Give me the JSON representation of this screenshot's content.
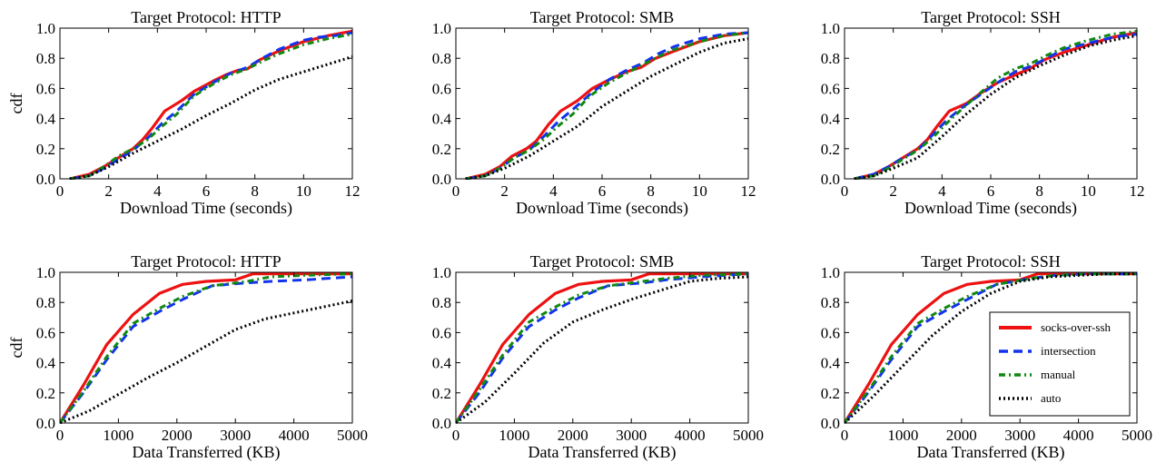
{
  "chart_data": [
    {
      "type": "line",
      "title": "Target Protocol: HTTP",
      "xlabel": "Download Time (seconds)",
      "ylabel": "cdf",
      "xlim": [
        0,
        12
      ],
      "ylim": [
        0,
        1
      ],
      "xticks": [
        0,
        2,
        4,
        6,
        8,
        10,
        12
      ],
      "yticks": [
        "0.0",
        "0.2",
        "0.4",
        "0.6",
        "0.8",
        "1.0"
      ],
      "grid": false,
      "series": [
        {
          "name": "socks-over-ssh",
          "color": "#ee1111",
          "dash": "solid",
          "x": [
            0.4,
            1.2,
            1.8,
            2.4,
            3.0,
            3.4,
            3.8,
            4.3,
            5.0,
            5.5,
            6.3,
            6.8,
            7.3,
            7.7,
            8.2,
            9.0,
            10.0,
            11.0,
            12.0
          ],
          "y": [
            0,
            0.03,
            0.08,
            0.14,
            0.2,
            0.26,
            0.34,
            0.45,
            0.52,
            0.58,
            0.65,
            0.69,
            0.72,
            0.73,
            0.79,
            0.85,
            0.91,
            0.95,
            0.98
          ]
        },
        {
          "name": "intersection",
          "color": "#1133ee",
          "dash": "dashed",
          "x": [
            0.4,
            1.2,
            1.8,
            2.4,
            3.0,
            3.6,
            4.2,
            4.8,
            5.5,
            6.3,
            7.0,
            7.7,
            8.3,
            9.0,
            10.0,
            10.6,
            11.3,
            12.0
          ],
          "y": [
            0,
            0.02,
            0.07,
            0.13,
            0.19,
            0.27,
            0.37,
            0.45,
            0.56,
            0.64,
            0.7,
            0.74,
            0.8,
            0.86,
            0.92,
            0.94,
            0.95,
            0.97
          ]
        },
        {
          "name": "manual",
          "color": "#118811",
          "dash": "dashdot",
          "x": [
            0.4,
            1.2,
            1.8,
            2.4,
            3.0,
            3.6,
            4.2,
            4.8,
            5.5,
            6.3,
            7.0,
            7.7,
            8.3,
            9.0,
            10.0,
            11.0,
            12.0
          ],
          "y": [
            0,
            0.02,
            0.08,
            0.15,
            0.2,
            0.26,
            0.35,
            0.43,
            0.55,
            0.63,
            0.69,
            0.73,
            0.78,
            0.83,
            0.89,
            0.93,
            0.96
          ]
        },
        {
          "name": "auto",
          "color": "#000000",
          "dash": "dotted",
          "x": [
            0.4,
            1.2,
            2.0,
            3.0,
            4.0,
            5.0,
            6.0,
            7.0,
            8.0,
            9.0,
            10.0,
            11.0,
            12.0
          ],
          "y": [
            0,
            0.02,
            0.08,
            0.17,
            0.25,
            0.33,
            0.42,
            0.5,
            0.59,
            0.66,
            0.71,
            0.76,
            0.81
          ]
        }
      ]
    },
    {
      "type": "line",
      "title": "Target Protocol: SMB",
      "xlabel": "Download Time (seconds)",
      "ylabel": "",
      "xlim": [
        0,
        12
      ],
      "ylim": [
        0,
        1
      ],
      "xticks": [
        0,
        2,
        4,
        6,
        8,
        10,
        12
      ],
      "yticks": [
        "0.0",
        "0.2",
        "0.4",
        "0.6",
        "0.8",
        "1.0"
      ],
      "grid": false,
      "series": [
        {
          "name": "socks-over-ssh",
          "color": "#ee1111",
          "dash": "solid",
          "x": [
            0.4,
            1.2,
            1.8,
            2.3,
            2.9,
            3.3,
            3.8,
            4.3,
            5.0,
            5.6,
            6.2,
            7.0,
            7.6,
            8.2,
            9.0,
            10.0,
            11.0,
            12.0
          ],
          "y": [
            0,
            0.03,
            0.08,
            0.15,
            0.2,
            0.25,
            0.36,
            0.45,
            0.52,
            0.6,
            0.65,
            0.71,
            0.74,
            0.8,
            0.85,
            0.91,
            0.95,
            0.97
          ]
        },
        {
          "name": "intersection",
          "color": "#1133ee",
          "dash": "dashed",
          "x": [
            0.4,
            1.2,
            1.8,
            2.4,
            3.0,
            3.6,
            4.2,
            4.8,
            5.5,
            6.3,
            7.0,
            7.7,
            8.3,
            9.0,
            10.0,
            11.0,
            12.0
          ],
          "y": [
            0,
            0.02,
            0.07,
            0.14,
            0.19,
            0.28,
            0.38,
            0.46,
            0.56,
            0.66,
            0.72,
            0.77,
            0.83,
            0.88,
            0.93,
            0.96,
            0.97
          ]
        },
        {
          "name": "manual",
          "color": "#118811",
          "dash": "dashdot",
          "x": [
            0.4,
            1.2,
            1.8,
            2.4,
            3.0,
            3.6,
            4.2,
            4.8,
            5.5,
            6.3,
            7.0,
            7.7,
            8.3,
            9.0,
            10.0,
            11.0,
            12.0
          ],
          "y": [
            0,
            0.02,
            0.07,
            0.14,
            0.19,
            0.26,
            0.35,
            0.43,
            0.55,
            0.64,
            0.7,
            0.76,
            0.81,
            0.86,
            0.91,
            0.95,
            0.97
          ]
        },
        {
          "name": "auto",
          "color": "#000000",
          "dash": "dotted",
          "x": [
            0.4,
            1.2,
            2.0,
            3.0,
            4.0,
            5.0,
            6.0,
            7.0,
            8.0,
            9.0,
            10.0,
            11.0,
            12.0
          ],
          "y": [
            0,
            0.02,
            0.07,
            0.15,
            0.25,
            0.35,
            0.48,
            0.58,
            0.68,
            0.76,
            0.84,
            0.9,
            0.93
          ]
        }
      ]
    },
    {
      "type": "line",
      "title": "Target Protocol: SSH",
      "xlabel": "Download Time (seconds)",
      "ylabel": "",
      "xlim": [
        0,
        12
      ],
      "ylim": [
        0,
        1
      ],
      "xticks": [
        0,
        2,
        4,
        6,
        8,
        10,
        12
      ],
      "yticks": [
        "0.0",
        "0.2",
        "0.4",
        "0.6",
        "0.8",
        "1.0"
      ],
      "grid": false,
      "series": [
        {
          "name": "socks-over-ssh",
          "color": "#ee1111",
          "dash": "solid",
          "x": [
            0.4,
            1.2,
            1.8,
            2.4,
            3.0,
            3.4,
            3.8,
            4.3,
            5.0,
            5.6,
            6.3,
            7.0,
            7.6,
            8.2,
            9.0,
            10.0,
            11.0,
            12.0
          ],
          "y": [
            0,
            0.03,
            0.08,
            0.14,
            0.2,
            0.26,
            0.35,
            0.45,
            0.5,
            0.57,
            0.64,
            0.69,
            0.73,
            0.79,
            0.84,
            0.89,
            0.94,
            0.97
          ]
        },
        {
          "name": "intersection",
          "color": "#1133ee",
          "dash": "dashed",
          "x": [
            0.4,
            1.2,
            1.8,
            2.4,
            3.0,
            3.6,
            4.2,
            4.8,
            5.5,
            6.3,
            7.0,
            7.7,
            8.3,
            9.0,
            10.0,
            11.0,
            12.0
          ],
          "y": [
            0,
            0.03,
            0.08,
            0.14,
            0.19,
            0.29,
            0.39,
            0.47,
            0.55,
            0.64,
            0.71,
            0.75,
            0.8,
            0.86,
            0.9,
            0.94,
            0.96
          ]
        },
        {
          "name": "manual",
          "color": "#118811",
          "dash": "dashdot",
          "x": [
            0.4,
            1.2,
            1.8,
            2.4,
            3.0,
            3.6,
            4.2,
            4.8,
            5.5,
            6.3,
            7.0,
            7.7,
            8.3,
            9.0,
            10.0,
            11.0,
            12.0
          ],
          "y": [
            0,
            0.02,
            0.07,
            0.13,
            0.19,
            0.27,
            0.37,
            0.46,
            0.56,
            0.67,
            0.73,
            0.77,
            0.82,
            0.87,
            0.92,
            0.96,
            0.98
          ]
        },
        {
          "name": "auto",
          "color": "#000000",
          "dash": "dotted",
          "x": [
            0.4,
            1.2,
            2.0,
            3.0,
            4.0,
            5.0,
            6.0,
            7.0,
            8.0,
            9.0,
            10.0,
            11.0,
            12.0
          ],
          "y": [
            0,
            0.02,
            0.07,
            0.14,
            0.28,
            0.43,
            0.56,
            0.67,
            0.75,
            0.82,
            0.88,
            0.92,
            0.95
          ]
        }
      ]
    },
    {
      "type": "line",
      "title": "Target Protocol: HTTP",
      "xlabel": "Data Transferred (KB)",
      "ylabel": "cdf",
      "xlim": [
        0,
        5000
      ],
      "ylim": [
        0,
        1
      ],
      "xticks": [
        0,
        1000,
        2000,
        3000,
        4000,
        5000
      ],
      "yticks": [
        "0.0",
        "0.2",
        "0.4",
        "0.6",
        "0.8",
        "1.0"
      ],
      "grid": false,
      "series": [
        {
          "name": "socks-over-ssh",
          "color": "#ee1111",
          "dash": "solid",
          "x": [
            0,
            400,
            800,
            1250,
            1700,
            2100,
            2500,
            3000,
            3300,
            4000,
            5000
          ],
          "y": [
            0,
            0.25,
            0.52,
            0.72,
            0.86,
            0.92,
            0.94,
            0.95,
            0.99,
            0.99,
            0.99
          ]
        },
        {
          "name": "intersection",
          "color": "#1133ee",
          "dash": "dashed",
          "x": [
            0,
            400,
            800,
            1250,
            1700,
            2100,
            2600,
            3200,
            3600,
            4200,
            5000
          ],
          "y": [
            0,
            0.2,
            0.42,
            0.64,
            0.74,
            0.82,
            0.91,
            0.93,
            0.94,
            0.95,
            0.97
          ]
        },
        {
          "name": "manual",
          "color": "#118811",
          "dash": "dashdot",
          "x": [
            0,
            400,
            800,
            1250,
            1700,
            2100,
            2600,
            3200,
            3600,
            4200,
            5000
          ],
          "y": [
            0,
            0.21,
            0.44,
            0.66,
            0.76,
            0.84,
            0.91,
            0.94,
            0.97,
            0.98,
            0.99
          ]
        },
        {
          "name": "auto",
          "color": "#000000",
          "dash": "dotted",
          "x": [
            0,
            500,
            1000,
            1500,
            2000,
            2500,
            3000,
            3500,
            4000,
            4500,
            5000
          ],
          "y": [
            0,
            0.08,
            0.19,
            0.3,
            0.4,
            0.51,
            0.62,
            0.69,
            0.73,
            0.77,
            0.81
          ]
        }
      ]
    },
    {
      "type": "line",
      "title": "Target Protocol: SMB",
      "xlabel": "Data Transferred (KB)",
      "ylabel": "",
      "xlim": [
        0,
        5000
      ],
      "ylim": [
        0,
        1
      ],
      "xticks": [
        0,
        1000,
        2000,
        3000,
        4000,
        5000
      ],
      "yticks": [
        "0.0",
        "0.2",
        "0.4",
        "0.6",
        "0.8",
        "1.0"
      ],
      "grid": false,
      "series": [
        {
          "name": "socks-over-ssh",
          "color": "#ee1111",
          "dash": "solid",
          "x": [
            0,
            400,
            800,
            1250,
            1700,
            2100,
            2500,
            3000,
            3300,
            4000,
            5000
          ],
          "y": [
            0,
            0.25,
            0.52,
            0.72,
            0.86,
            0.92,
            0.94,
            0.95,
            0.99,
            0.99,
            0.99
          ]
        },
        {
          "name": "intersection",
          "color": "#1133ee",
          "dash": "dashed",
          "x": [
            0,
            400,
            800,
            1250,
            1700,
            2100,
            2600,
            3200,
            3600,
            4200,
            5000
          ],
          "y": [
            0,
            0.2,
            0.43,
            0.64,
            0.75,
            0.83,
            0.91,
            0.93,
            0.95,
            0.97,
            0.99
          ]
        },
        {
          "name": "manual",
          "color": "#118811",
          "dash": "dashdot",
          "x": [
            0,
            400,
            800,
            1250,
            1700,
            2100,
            2600,
            3200,
            3600,
            4200,
            5000
          ],
          "y": [
            0,
            0.22,
            0.45,
            0.67,
            0.77,
            0.85,
            0.91,
            0.94,
            0.96,
            0.98,
            0.99
          ]
        },
        {
          "name": "auto",
          "color": "#000000",
          "dash": "dotted",
          "x": [
            0,
            500,
            1000,
            1500,
            2000,
            2500,
            3000,
            3500,
            4000,
            4500,
            5000
          ],
          "y": [
            0,
            0.14,
            0.33,
            0.53,
            0.67,
            0.75,
            0.82,
            0.88,
            0.94,
            0.96,
            0.97
          ]
        }
      ]
    },
    {
      "type": "line",
      "title": "Target Protocol: SSH",
      "xlabel": "Data Transferred (KB)",
      "ylabel": "",
      "xlim": [
        0,
        5000
      ],
      "ylim": [
        0,
        1
      ],
      "xticks": [
        0,
        1000,
        2000,
        3000,
        4000,
        5000
      ],
      "yticks": [
        "0.0",
        "0.2",
        "0.4",
        "0.6",
        "0.8",
        "1.0"
      ],
      "grid": false,
      "legend": {
        "placement": "lower-right",
        "entries": [
          "socks-over-ssh",
          "intersection",
          "manual",
          "auto"
        ]
      },
      "series": [
        {
          "name": "socks-over-ssh",
          "color": "#ee1111",
          "dash": "solid",
          "x": [
            0,
            400,
            800,
            1250,
            1700,
            2100,
            2500,
            3000,
            3300,
            4000,
            5000
          ],
          "y": [
            0,
            0.25,
            0.52,
            0.72,
            0.86,
            0.92,
            0.94,
            0.95,
            0.99,
            0.99,
            0.99
          ]
        },
        {
          "name": "intersection",
          "color": "#1133ee",
          "dash": "dashed",
          "x": [
            0,
            400,
            800,
            1250,
            1700,
            2100,
            2600,
            3200,
            3600,
            4200,
            5000
          ],
          "y": [
            0,
            0.2,
            0.42,
            0.64,
            0.74,
            0.82,
            0.92,
            0.96,
            0.98,
            0.99,
            0.99
          ]
        },
        {
          "name": "manual",
          "color": "#118811",
          "dash": "dashdot",
          "x": [
            0,
            400,
            800,
            1250,
            1700,
            2100,
            2600,
            3200,
            3600,
            4200,
            5000
          ],
          "y": [
            0,
            0.21,
            0.44,
            0.66,
            0.76,
            0.84,
            0.92,
            0.96,
            0.98,
            0.99,
            0.99
          ]
        },
        {
          "name": "auto",
          "color": "#000000",
          "dash": "dotted",
          "x": [
            0,
            500,
            1000,
            1500,
            2000,
            2500,
            3000,
            3500,
            4000,
            4500,
            5000
          ],
          "y": [
            0,
            0.18,
            0.38,
            0.58,
            0.74,
            0.86,
            0.94,
            0.97,
            0.98,
            0.99,
            0.99
          ]
        }
      ]
    }
  ]
}
